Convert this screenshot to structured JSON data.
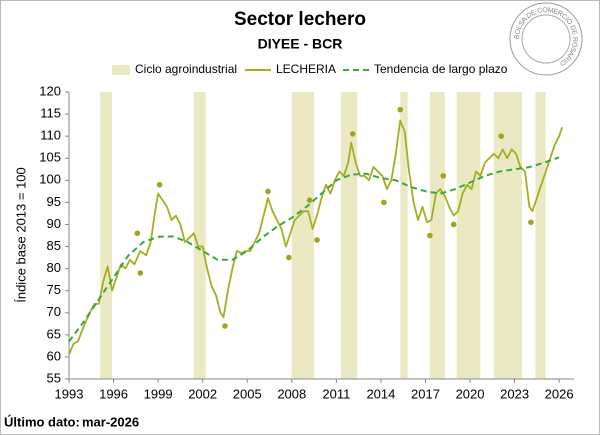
{
  "chart_data": {
    "type": "line",
    "title": "Sector lechero",
    "subtitle": "DIYEE - BCR",
    "y_label": "Índice base 2013 = 100",
    "footnote_label": "Último dato:",
    "footnote_value": "mar-2026",
    "logo_text": "BOLSA DE COMERCIO DE ROSARIO",
    "xlim": [
      1993,
      2027
    ],
    "xticks": [
      1993,
      1996,
      1999,
      2002,
      2005,
      2008,
      2011,
      2014,
      2017,
      2020,
      2023,
      2026
    ],
    "ylim": [
      55,
      120
    ],
    "yticks": [
      55,
      60,
      65,
      70,
      75,
      80,
      85,
      90,
      95,
      100,
      105,
      110,
      115,
      120
    ],
    "bands": {
      "name": "Ciclo agroindustrial",
      "color": "#ebe9c3",
      "ranges": [
        [
          1995.1,
          1995.9
        ],
        [
          2001.4,
          2002.2
        ],
        [
          2008.0,
          2009.5
        ],
        [
          2011.3,
          2012.4
        ],
        [
          2015.3,
          2015.8
        ],
        [
          2017.3,
          2018.3
        ],
        [
          2019.1,
          2020.7
        ],
        [
          2021.6,
          2023.5
        ],
        [
          2024.4,
          2025.1
        ]
      ]
    },
    "series": [
      {
        "name": "LECHERIA",
        "color": "#a5ae1e",
        "style": "solid",
        "x": [
          1993.0,
          1993.3,
          1993.6,
          1994.0,
          1994.4,
          1994.7,
          1995.0,
          1995.3,
          1995.6,
          1995.9,
          1996.2,
          1996.5,
          1996.8,
          1997.1,
          1997.4,
          1997.8,
          1998.2,
          1998.5,
          1998.8,
          1999.0,
          1999.3,
          1999.6,
          1999.9,
          2000.2,
          2000.5,
          2000.8,
          2001.1,
          2001.4,
          2001.7,
          2002.0,
          2002.3,
          2002.6,
          2002.9,
          2003.2,
          2003.4,
          2003.7,
          2004.0,
          2004.3,
          2004.6,
          2004.9,
          2005.2,
          2005.5,
          2005.8,
          2006.1,
          2006.4,
          2006.7,
          2007.0,
          2007.3,
          2007.6,
          2007.9,
          2008.2,
          2008.5,
          2008.8,
          2009.1,
          2009.4,
          2009.7,
          2010.0,
          2010.3,
          2010.6,
          2010.9,
          2011.2,
          2011.5,
          2011.8,
          2012.0,
          2012.3,
          2012.6,
          2012.9,
          2013.2,
          2013.5,
          2013.8,
          2014.1,
          2014.4,
          2014.7,
          2015.0,
          2015.3,
          2015.6,
          2015.9,
          2016.2,
          2016.5,
          2016.8,
          2017.1,
          2017.4,
          2017.7,
          2018.0,
          2018.3,
          2018.6,
          2018.9,
          2019.2,
          2019.5,
          2019.8,
          2020.1,
          2020.4,
          2020.7,
          2021.0,
          2021.3,
          2021.6,
          2021.9,
          2022.2,
          2022.5,
          2022.8,
          2023.1,
          2023.4,
          2023.7,
          2024.0,
          2024.2,
          2024.5,
          2024.8,
          2025.1,
          2025.4,
          2025.7,
          2026.0,
          2026.2
        ],
        "values": [
          60.5,
          63,
          63.5,
          67,
          70,
          72,
          72,
          77,
          80.5,
          75,
          78,
          81,
          80,
          82,
          81,
          84,
          83,
          86,
          93,
          97,
          95.5,
          94,
          91,
          92,
          90,
          86,
          87,
          88,
          85,
          85,
          80,
          76,
          74,
          70,
          69,
          75,
          80,
          84,
          83.5,
          84,
          84,
          86,
          88,
          92,
          96,
          93,
          91,
          89,
          85,
          88,
          91,
          92,
          93,
          93,
          89,
          92,
          96,
          99,
          97,
          100,
          102,
          101,
          104,
          108.5,
          104,
          101,
          101,
          100,
          103,
          102,
          101,
          98,
          100,
          106,
          113.5,
          111,
          102,
          95,
          91,
          94,
          90.5,
          91,
          97,
          98,
          96.5,
          94,
          92,
          93,
          97,
          99,
          98,
          102,
          101,
          104,
          105,
          106,
          105,
          107,
          105,
          107,
          106,
          103,
          102,
          94,
          93,
          96,
          99,
          102,
          105,
          108,
          110,
          112
        ]
      },
      {
        "name": "Tendencia de largo plazo",
        "color": "#3aa83a",
        "style": "dashed",
        "x": [
          1993,
          1994,
          1995,
          1996,
          1997,
          1998,
          1999,
          2000,
          2001,
          2002,
          2003,
          2004,
          2005,
          2006,
          2007,
          2008,
          2009,
          2010,
          2011,
          2012,
          2013,
          2014,
          2015,
          2016,
          2017,
          2018,
          2019,
          2020,
          2021,
          2022,
          2023,
          2024,
          2025,
          2026
        ],
        "values": [
          63.5,
          68,
          73,
          78,
          83,
          86,
          87.2,
          87.3,
          86,
          84,
          82,
          82,
          84,
          87,
          89.5,
          91.5,
          94,
          97,
          100,
          101.3,
          101.5,
          100.5,
          100,
          98.5,
          97.5,
          97,
          98,
          99.5,
          101,
          102,
          102.5,
          103,
          104,
          105.2
        ]
      },
      {
        "color": "#a5a21e",
        "style": "dots",
        "x": [
          1997.6,
          1997.8,
          1999.1,
          2003.5,
          2006.4,
          2007.8,
          2009.2,
          2009.7,
          2012.1,
          2014.2,
          2015.3,
          2017.3,
          2018.2,
          2018.9,
          2022.1,
          2024.1
        ],
        "values": [
          88,
          79,
          99,
          67,
          97.5,
          82.5,
          95.5,
          86.5,
          110.5,
          95,
          116,
          87.5,
          101,
          90,
          110,
          90.5
        ]
      }
    ]
  }
}
